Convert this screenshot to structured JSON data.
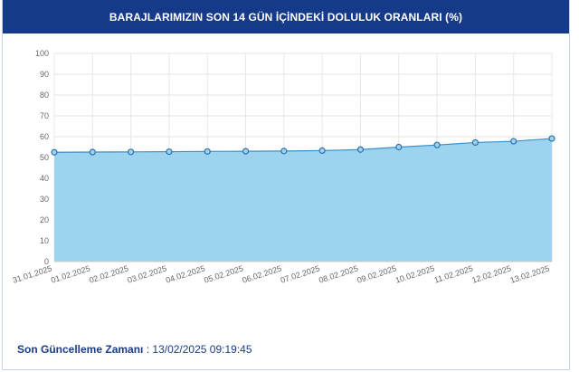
{
  "header": {
    "title": "BARAJLARIMIZIN SON 14 GÜN İÇİNDEKİ DOLULUK ORANLARI (%)"
  },
  "footer": {
    "label": "Son Güncelleme Zamanı",
    "separator": " : ",
    "value": "13/02/2025 09:19:45"
  },
  "colors": {
    "header_bg": "#163a8a",
    "area_fill": "#9cd3ef",
    "line": "#3d8fc7",
    "marker_fill": "#9cd3ef",
    "marker_stroke": "#2f6fa8"
  },
  "chart_data": {
    "type": "area",
    "title": "BARAJLARIMIZIN SON 14 GÜN İÇİNDEKİ DOLULUK ORANLARI (%)",
    "xlabel": "",
    "ylabel": "",
    "ylim": [
      0,
      100
    ],
    "yticks": [
      0,
      10,
      20,
      30,
      40,
      50,
      60,
      70,
      80,
      90,
      100
    ],
    "grid": true,
    "categories": [
      "31.01.2025",
      "01.02.2025",
      "02.02.2025",
      "03.02.2025",
      "04.02.2025",
      "05.02.2025",
      "06.02.2025",
      "07.02.2025",
      "08.02.2025",
      "09.02.2025",
      "10.02.2025",
      "11.02.2025",
      "12.02.2025",
      "13.02.2025"
    ],
    "series": [
      {
        "values": [
          52.5,
          52.6,
          52.7,
          52.8,
          52.9,
          53.0,
          53.1,
          53.3,
          53.8,
          55.0,
          56.0,
          57.2,
          57.8,
          59.1
        ]
      }
    ]
  }
}
